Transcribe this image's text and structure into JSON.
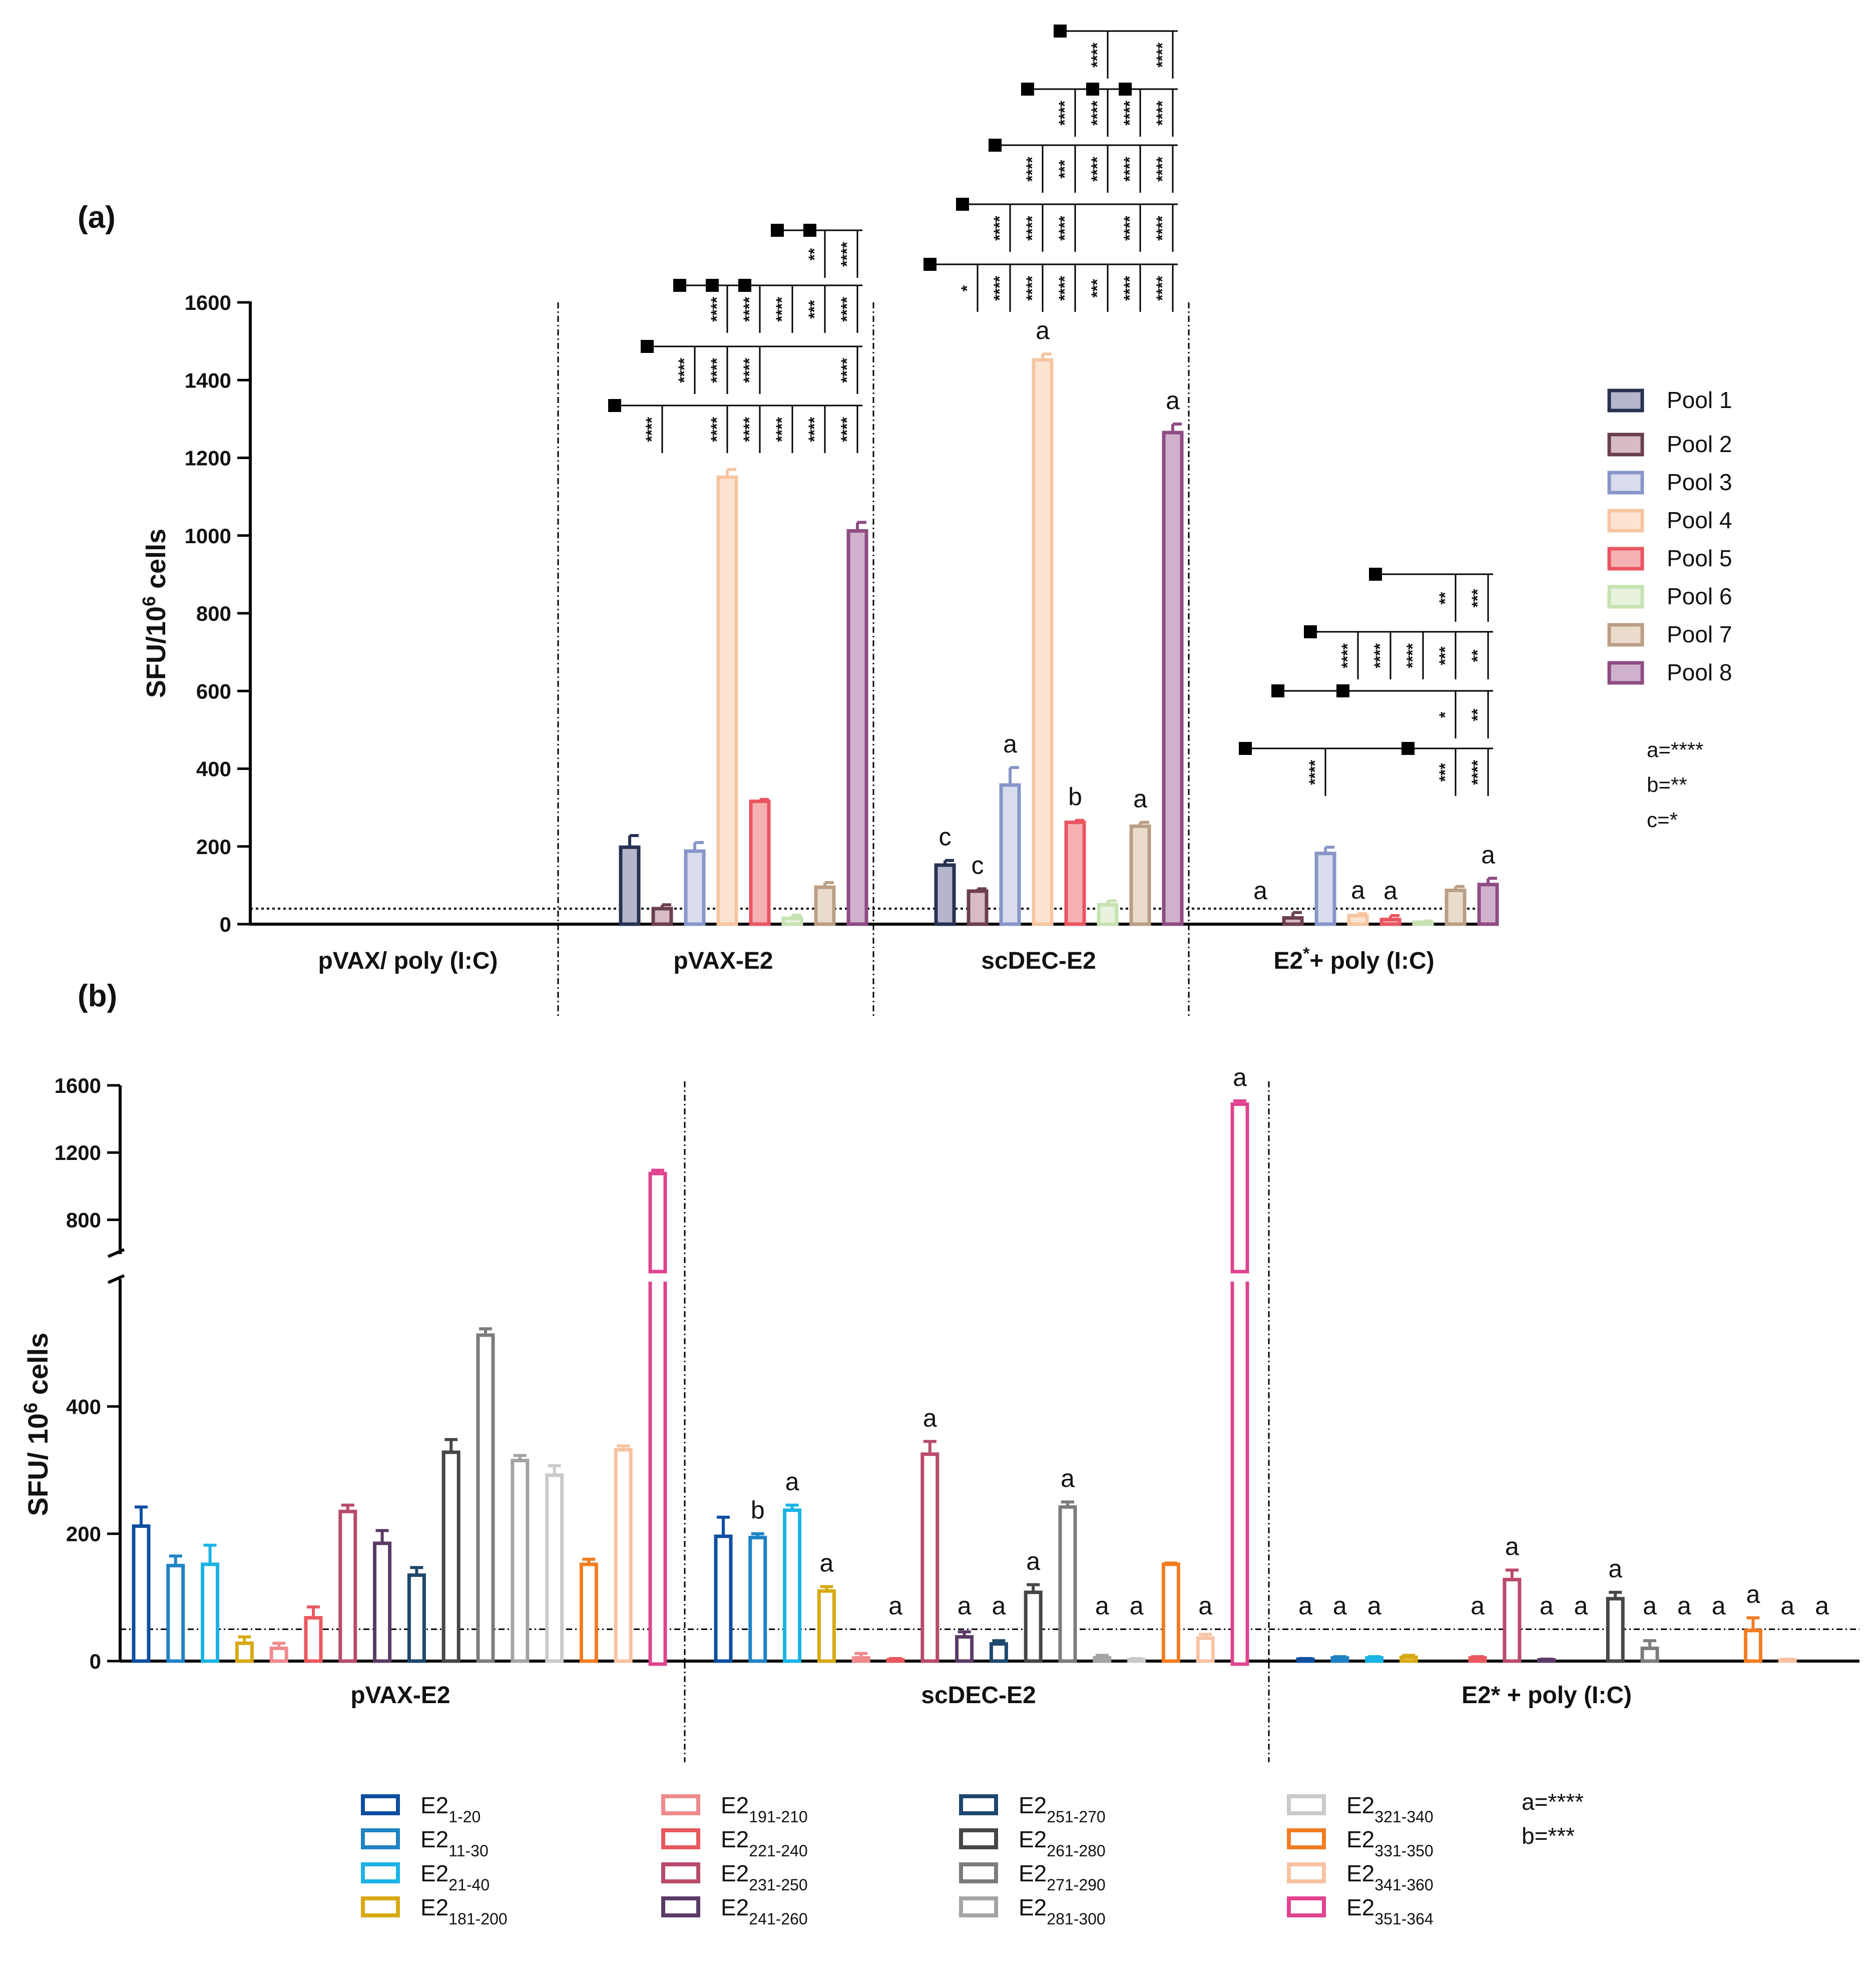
{
  "panel_a_label": "(a)",
  "panel_b_label": "(b)",
  "legend_a": {
    "items": [
      "Pool 1",
      "Pool 2",
      "Pool 3",
      "Pool 4",
      "Pool 5",
      "Pool 6",
      "Pool 7",
      "Pool 8"
    ],
    "sig_notes": [
      "a=****",
      "b=**",
      "c=*"
    ]
  },
  "legend_b": {
    "items": [
      {
        "base": "E2",
        "sub": "1-20"
      },
      {
        "base": "E2",
        "sub": "11-30"
      },
      {
        "base": "E2",
        "sub": "21-40"
      },
      {
        "base": "E2",
        "sub": "181-200"
      },
      {
        "base": "E2",
        "sub": "191-210"
      },
      {
        "base": "E2",
        "sub": "221-240"
      },
      {
        "base": "E2",
        "sub": "231-250"
      },
      {
        "base": "E2",
        "sub": "241-260"
      },
      {
        "base": "E2",
        "sub": "251-270"
      },
      {
        "base": "E2",
        "sub": "261-280"
      },
      {
        "base": "E2",
        "sub": "271-290"
      },
      {
        "base": "E2",
        "sub": "281-300"
      },
      {
        "base": "E2",
        "sub": "321-340"
      },
      {
        "base": "E2",
        "sub": "331-350"
      },
      {
        "base": "E2",
        "sub": "341-360"
      },
      {
        "base": "E2",
        "sub": "351-364"
      }
    ],
    "sig_notes": [
      "a=****",
      "b=***"
    ]
  },
  "chart_data": [
    {
      "type": "bar",
      "title": "(a)",
      "ylabel": "SFU/10^6 cells",
      "ylabel_base": "SFU/10",
      "ylabel_sup": "6",
      "ylabel_tail": " cells",
      "ylim": [
        0,
        1600
      ],
      "yticks": [
        0,
        200,
        400,
        600,
        800,
        1000,
        1200,
        1400,
        1600
      ],
      "threshold": 40,
      "groups": [
        "pVAX/ poly (I:C)",
        "pVAX-E2",
        "scDEC-E2",
        "E2*+ poly (I:C)"
      ],
      "group_labels": [
        {
          "text": "pVAX/ poly (I:C)",
          "sup": ""
        },
        {
          "text": "pVAX-E2",
          "sup": ""
        },
        {
          "text": "scDEC-E2",
          "sup": ""
        },
        {
          "text": "E2",
          "sup": "*",
          "rest": "+ poly (I:C)"
        }
      ],
      "series": [
        {
          "name": "Pool 1",
          "values": [
            0,
            198,
            152,
            0
          ],
          "errors": [
            0,
            30,
            12,
            0
          ],
          "labels": [
            "",
            "",
            "c",
            "a"
          ]
        },
        {
          "name": "Pool 2",
          "values": [
            0,
            40,
            85,
            16
          ],
          "errors": [
            0,
            10,
            6,
            14
          ],
          "labels": [
            "",
            "",
            "c",
            ""
          ]
        },
        {
          "name": "Pool 3",
          "values": [
            0,
            188,
            358,
            182
          ],
          "errors": [
            0,
            22,
            45,
            16
          ],
          "labels": [
            "",
            "",
            "a",
            ""
          ]
        },
        {
          "name": "Pool 4",
          "values": [
            0,
            1150,
            1452,
            22
          ],
          "errors": [
            0,
            20,
            15,
            5
          ],
          "labels": [
            "",
            "",
            "a",
            "a"
          ]
        },
        {
          "name": "Pool 5",
          "values": [
            0,
            316,
            262,
            12
          ],
          "errors": [
            0,
            5,
            5,
            10
          ],
          "labels": [
            "",
            "",
            "b",
            "a"
          ]
        },
        {
          "name": "Pool 6",
          "values": [
            0,
            15,
            50,
            5
          ],
          "errors": [
            0,
            8,
            10,
            3
          ],
          "labels": [
            "",
            "",
            "",
            ""
          ]
        },
        {
          "name": "Pool 7",
          "values": [
            0,
            95,
            252,
            87
          ],
          "errors": [
            0,
            12,
            10,
            10
          ],
          "labels": [
            "",
            "",
            "a",
            ""
          ]
        },
        {
          "name": "Pool 8",
          "values": [
            0,
            1012,
            1265,
            102
          ],
          "errors": [
            0,
            22,
            22,
            16
          ],
          "labels": [
            "",
            "",
            "a",
            "a"
          ]
        }
      ],
      "comparisons": [
        {
          "group": 1,
          "ref": 0,
          "marked": [
            0
          ],
          "targets": [
            {
              "s": 1,
              "t": "****"
            },
            {
              "s": 3,
              "t": "****"
            },
            {
              "s": 4,
              "t": "****"
            },
            {
              "s": 5,
              "t": "****"
            },
            {
              "s": 6,
              "t": "****"
            },
            {
              "s": 7,
              "t": "****"
            }
          ]
        },
        {
          "group": 1,
          "ref": 1,
          "marked": [
            1
          ],
          "targets": [
            {
              "s": 2,
              "t": "****"
            },
            {
              "s": 3,
              "t": "****"
            },
            {
              "s": 4,
              "t": "****"
            },
            {
              "s": 7,
              "t": "****"
            }
          ]
        },
        {
          "group": 1,
          "ref": 2,
          "marked": [
            2,
            3,
            4
          ],
          "targets": [
            {
              "s": 3,
              "t": "****"
            },
            {
              "s": 4,
              "t": "****"
            },
            {
              "s": 5,
              "t": "****"
            },
            {
              "s": 6,
              "t": "***"
            },
            {
              "s": 7,
              "t": "****"
            }
          ]
        },
        {
          "group": 1,
          "ref": 5,
          "marked": [
            5,
            6
          ],
          "targets": [
            {
              "s": 6,
              "t": "**"
            },
            {
              "s": 7,
              "t": "****"
            }
          ]
        },
        {
          "group": 2,
          "ref": 0,
          "marked": [
            0
          ],
          "targets": [
            {
              "s": 1,
              "t": "*"
            },
            {
              "s": 2,
              "t": "****"
            },
            {
              "s": 3,
              "t": "****"
            },
            {
              "s": 4,
              "t": "****"
            },
            {
              "s": 5,
              "t": "***"
            },
            {
              "s": 6,
              "t": "****"
            },
            {
              "s": 7,
              "t": "****"
            }
          ]
        },
        {
          "group": 2,
          "ref": 1,
          "marked": [
            1
          ],
          "targets": [
            {
              "s": 2,
              "t": "****"
            },
            {
              "s": 3,
              "t": "****"
            },
            {
              "s": 4,
              "t": "****"
            },
            {
              "s": 6,
              "t": "****"
            },
            {
              "s": 7,
              "t": "****"
            }
          ]
        },
        {
          "group": 2,
          "ref": 2,
          "marked": [
            2
          ],
          "targets": [
            {
              "s": 3,
              "t": "****"
            },
            {
              "s": 4,
              "t": "***"
            },
            {
              "s": 5,
              "t": "****"
            },
            {
              "s": 6,
              "t": "****"
            },
            {
              "s": 7,
              "t": "****"
            }
          ]
        },
        {
          "group": 2,
          "ref": 3,
          "marked": [
            3,
            5,
            6
          ],
          "targets": [
            {
              "s": 4,
              "t": "****"
            },
            {
              "s": 5,
              "t": "****"
            },
            {
              "s": 6,
              "t": "****"
            },
            {
              "s": 7,
              "t": "****"
            }
          ]
        },
        {
          "group": 2,
          "ref": 4,
          "marked": [
            4
          ],
          "targets": [
            {
              "s": 5,
              "t": "****"
            },
            {
              "s": 7,
              "t": "****"
            }
          ]
        },
        {
          "group": 3,
          "ref": 0,
          "marked": [
            0,
            5
          ],
          "targets": [
            {
              "s": 2,
              "t": "****"
            },
            {
              "s": 6,
              "t": "***"
            },
            {
              "s": 7,
              "t": "****"
            }
          ]
        },
        {
          "group": 3,
          "ref": 1,
          "marked": [
            1,
            3
          ],
          "targets": [
            {
              "s": 6,
              "t": "*"
            },
            {
              "s": 7,
              "t": "**"
            }
          ]
        },
        {
          "group": 3,
          "ref": 2,
          "marked": [
            2
          ],
          "targets": [
            {
              "s": 3,
              "t": "****"
            },
            {
              "s": 4,
              "t": "****"
            },
            {
              "s": 5,
              "t": "****"
            },
            {
              "s": 6,
              "t": "***"
            },
            {
              "s": 7,
              "t": "**"
            }
          ]
        },
        {
          "group": 3,
          "ref": 4,
          "marked": [
            4
          ],
          "targets": [
            {
              "s": 6,
              "t": "**"
            },
            {
              "s": 7,
              "t": "***"
            }
          ]
        }
      ]
    },
    {
      "type": "bar",
      "title": "(b)",
      "ylabel": "SFU/ 10^6 cells",
      "ylabel_base": "SFU/ 10",
      "ylabel_sup": "6",
      "ylabel_tail": " cells",
      "y_axis_break": true,
      "lower_ylim": [
        0,
        600
      ],
      "lower_yticks": [
        0,
        200,
        400
      ],
      "upper_ylim": [
        700,
        1600
      ],
      "upper_yticks": [
        800,
        1200,
        1600
      ],
      "threshold": 50,
      "groups": [
        "pVAX-E2",
        "scDEC-E2",
        "E2* + poly (I:C)"
      ],
      "series_names": [
        "E2 1-20",
        "E2 11-30",
        "E2 21-40",
        "E2 181-200",
        "E2 191-210",
        "E2 221-240",
        "E2 231-250",
        "E2 241-260",
        "E2 251-270",
        "E2 261-280",
        "E2 271-290",
        "E2 281-300",
        "E2 321-340",
        "E2 331-350",
        "E2 341-360",
        "E2 351-364"
      ],
      "values": [
        [
          212,
          150,
          152,
          28,
          20,
          68,
          235,
          185,
          135,
          328,
          512,
          315,
          292,
          152,
          332,
          1075
        ],
        [
          196,
          194,
          237,
          110,
          5,
          2,
          325,
          38,
          27,
          108,
          242,
          5,
          2,
          152,
          36,
          1488
        ],
        [
          3,
          5,
          5,
          6,
          0,
          5,
          128,
          2,
          0,
          98,
          20,
          0,
          0,
          48,
          2,
          0
        ]
      ],
      "errors": [
        [
          30,
          15,
          30,
          10,
          8,
          17,
          10,
          20,
          12,
          20,
          10,
          8,
          15,
          8,
          6,
          20
        ],
        [
          30,
          6,
          8,
          7,
          7,
          2,
          20,
          8,
          5,
          12,
          8,
          4,
          2,
          2,
          6,
          20
        ],
        [
          1,
          2,
          2,
          3,
          0,
          2,
          15,
          1,
          0,
          10,
          12,
          0,
          0,
          20,
          1,
          0
        ]
      ],
      "labels": [
        [
          "",
          "",
          "",
          "",
          "",
          "",
          "",
          "",
          "",
          "",
          "",
          "",
          "",
          "",
          "",
          ""
        ],
        [
          "",
          "b",
          "a",
          "a",
          "",
          "a",
          "a",
          "a",
          "a",
          "a",
          "a",
          "a",
          "a",
          "",
          "a",
          "a"
        ],
        [
          "a",
          "a",
          "a",
          "",
          "",
          "a",
          "a",
          "a",
          "a",
          "a",
          "a",
          "a",
          "a",
          "a",
          "a",
          "a"
        ]
      ]
    }
  ]
}
